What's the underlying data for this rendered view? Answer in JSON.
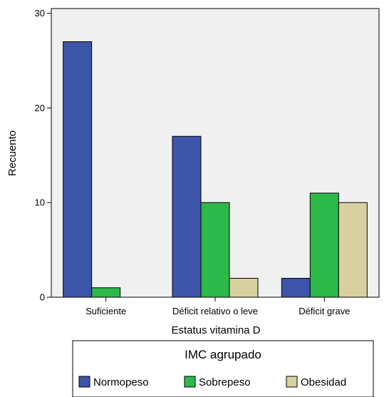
{
  "chart_data": {
    "type": "bar",
    "title": "",
    "xlabel": "Estatus vitamina D",
    "ylabel": "Recuento",
    "categories": [
      "Suficiente",
      "Déficit relativo o leve",
      "Déficit grave"
    ],
    "series": [
      {
        "name": "Normopeso",
        "color": "#3d55a8",
        "values": [
          27,
          17,
          2
        ]
      },
      {
        "name": "Sobrepeso",
        "color": "#2db84a",
        "values": [
          1,
          10,
          11
        ]
      },
      {
        "name": "Obesidad",
        "color": "#d6d19f",
        "values": [
          0,
          2,
          10
        ]
      }
    ],
    "ylim": [
      0,
      30.5
    ],
    "yticks": [
      0,
      10,
      20,
      30
    ],
    "grid": false,
    "plot_background": "#f0f0f0",
    "legend": {
      "title": "IMC agrupado",
      "placement": "bottom"
    }
  }
}
